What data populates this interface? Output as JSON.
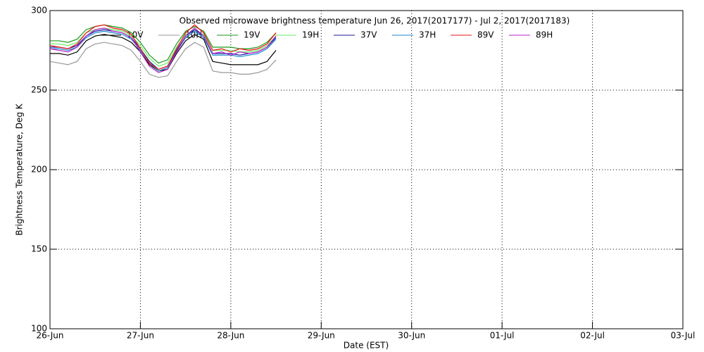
{
  "chart_data": {
    "type": "line",
    "title": "Observed microwave brightness temperature Jun 26, 2017(2017177) - Jul  2, 2017(2017183)",
    "x_label": "Date (EST)",
    "y_label": "Brightness Temperature, Deg K",
    "x": [
      0,
      0.1,
      0.2,
      0.3,
      0.4,
      0.5,
      0.6,
      0.7,
      0.8,
      0.9,
      1.0,
      1.1,
      1.2,
      1.3,
      1.4,
      1.5,
      1.6,
      1.7,
      1.8,
      1.9,
      2.0,
      2.1,
      2.2,
      2.3,
      2.4,
      2.5
    ],
    "xlim": [
      0,
      7
    ],
    "xticks": [
      {
        "value": 0,
        "label": "26-Jun"
      },
      {
        "value": 1,
        "label": "27-Jun"
      },
      {
        "value": 2,
        "label": "28-Jun"
      },
      {
        "value": 3,
        "label": "29-Jun"
      },
      {
        "value": 4,
        "label": "30-Jun"
      },
      {
        "value": 5,
        "label": "01-Jul"
      },
      {
        "value": 6,
        "label": "02-Jul"
      },
      {
        "value": 7,
        "label": "03-Jul"
      }
    ],
    "ylim": [
      100,
      300
    ],
    "yticks": [
      100,
      150,
      200,
      250,
      300
    ],
    "grid": true,
    "series": [
      {
        "name": "10V",
        "color": "#000000",
        "values": [
          273,
          273,
          272,
          274,
          281,
          284,
          285,
          284,
          283,
          280,
          274,
          266,
          262,
          263,
          273,
          281,
          285,
          282,
          268,
          267,
          266,
          266,
          266,
          266,
          268,
          275
        ]
      },
      {
        "name": "10H",
        "color": "#999999",
        "values": [
          268,
          267,
          266,
          268,
          276,
          279,
          280,
          279,
          278,
          275,
          268,
          260,
          258,
          259,
          268,
          276,
          280,
          277,
          262,
          261,
          261,
          260,
          260,
          261,
          263,
          269
        ]
      },
      {
        "name": "19V",
        "color": "#1a9a1a",
        "values": [
          281,
          281,
          280,
          282,
          288,
          290,
          291,
          290,
          289,
          286,
          280,
          272,
          267,
          269,
          279,
          287,
          290,
          287,
          277,
          277,
          277,
          276,
          276,
          277,
          280,
          286
        ]
      },
      {
        "name": "19H",
        "color": "#66ee66",
        "values": [
          279,
          279,
          278,
          280,
          286,
          288,
          289,
          288,
          287,
          284,
          278,
          270,
          265,
          267,
          277,
          285,
          288,
          285,
          275,
          275,
          275,
          274,
          274,
          275,
          278,
          284
        ]
      },
      {
        "name": "37V",
        "color": "#1a1a99",
        "values": [
          277,
          277,
          276,
          278,
          284,
          287,
          288,
          287,
          286,
          283,
          276,
          268,
          263,
          265,
          275,
          284,
          288,
          284,
          273,
          273,
          273,
          272,
          273,
          274,
          277,
          283
        ]
      },
      {
        "name": "37H",
        "color": "#1a88cc",
        "values": [
          276,
          276,
          275,
          277,
          283,
          286,
          287,
          286,
          285,
          282,
          275,
          267,
          262,
          264,
          274,
          283,
          287,
          283,
          272,
          272,
          272,
          271,
          272,
          273,
          276,
          282
        ]
      },
      {
        "name": "89V",
        "color": "#ee1111",
        "values": [
          278,
          277,
          276,
          279,
          286,
          290,
          291,
          289,
          288,
          285,
          276,
          267,
          263,
          265,
          276,
          286,
          291,
          286,
          275,
          276,
          274,
          276,
          275,
          276,
          279,
          286
        ]
      },
      {
        "name": "89H",
        "color": "#bb22cc",
        "values": [
          276,
          275,
          274,
          277,
          284,
          288,
          289,
          287,
          286,
          283,
          274,
          265,
          261,
          263,
          274,
          284,
          289,
          284,
          273,
          274,
          272,
          274,
          273,
          274,
          277,
          284
        ]
      }
    ]
  }
}
